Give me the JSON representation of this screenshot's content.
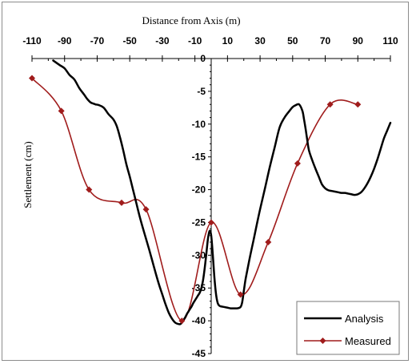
{
  "chart_data": {
    "type": "line",
    "title": "",
    "xlabel": "Distance from Axis (m)",
    "ylabel": "Settlement (cm)",
    "xlim": [
      -110,
      110
    ],
    "ylim": [
      -45,
      0
    ],
    "x_ticks": [
      -110,
      -90,
      -70,
      -50,
      -30,
      -10,
      10,
      30,
      50,
      70,
      90,
      110
    ],
    "x_tick_labels": [
      "-110",
      "-90",
      "-70",
      "-50",
      "-30",
      "-10",
      "10",
      "30",
      "50",
      "70",
      "90",
      "110"
    ],
    "y_ticks": [
      0,
      -5,
      -10,
      -15,
      -20,
      -25,
      -30,
      -35,
      -40,
      -45
    ],
    "y_tick_labels": [
      "0",
      "-5",
      "-10",
      "-15",
      "-20",
      "-25",
      "-30",
      "-35",
      "-40",
      "-45"
    ],
    "x_axis_position": "top",
    "grid": false,
    "legend_position": "bottom-right",
    "series": [
      {
        "name": "Analysis",
        "color": "#000000",
        "marker": "none",
        "x": [
          -97,
          -93,
          -90,
          -87,
          -84,
          -81,
          -78,
          -76,
          -74,
          -72,
          -71,
          -69,
          -66,
          -63,
          -60,
          -58,
          -56,
          -54,
          -52,
          -50,
          -48,
          -46,
          -44,
          -42,
          -40,
          -38,
          -36,
          -34,
          -32,
          -30,
          -28,
          -26,
          -24,
          -22,
          -20,
          -19,
          -18,
          -17,
          -16,
          -15,
          -14,
          -13,
          -12,
          -11,
          -10,
          -9,
          -8,
          -7,
          -6,
          -5,
          -4,
          -3,
          -2,
          -1,
          0,
          1,
          2,
          3,
          4,
          5,
          6,
          8,
          10,
          12,
          14,
          16,
          18,
          19,
          20,
          21,
          22,
          24,
          26,
          28,
          30,
          33,
          36,
          39,
          42,
          45,
          48,
          50,
          52,
          54,
          56,
          57,
          58,
          59,
          60,
          62,
          64,
          66,
          68,
          70,
          72,
          74,
          76,
          78,
          80,
          82,
          84,
          86,
          88,
          90,
          92,
          94,
          96,
          98,
          100,
          102,
          104,
          106,
          108,
          110
        ],
        "y": [
          -0.3,
          -1.0,
          -1.5,
          -2.5,
          -3.2,
          -4.5,
          -5.5,
          -6.2,
          -6.7,
          -6.9,
          -7.0,
          -7.1,
          -7.5,
          -8.5,
          -9.3,
          -10.3,
          -12.0,
          -14.0,
          -16.2,
          -18.0,
          -20.0,
          -22.0,
          -24.0,
          -25.8,
          -27.5,
          -29.2,
          -31.0,
          -32.8,
          -34.5,
          -36.0,
          -37.5,
          -38.8,
          -39.7,
          -40.3,
          -40.5,
          -40.5,
          -40.3,
          -39.9,
          -39.5,
          -39.0,
          -38.6,
          -38.2,
          -37.8,
          -37.3,
          -36.9,
          -36.5,
          -36.1,
          -35.7,
          -35.0,
          -33.8,
          -32.0,
          -29.8,
          -27.5,
          -26.3,
          -27.0,
          -30.0,
          -33.5,
          -36.0,
          -37.3,
          -37.7,
          -37.8,
          -37.9,
          -38.0,
          -38.1,
          -38.1,
          -38.1,
          -37.9,
          -37.2,
          -35.5,
          -33.8,
          -32.5,
          -30.0,
          -27.7,
          -25.3,
          -23.0,
          -19.8,
          -16.5,
          -13.5,
          -10.5,
          -9.0,
          -8.0,
          -7.4,
          -7.1,
          -7.0,
          -8.0,
          -9.3,
          -10.8,
          -12.5,
          -14.0,
          -15.5,
          -16.8,
          -18.0,
          -19.2,
          -19.8,
          -20.1,
          -20.2,
          -20.3,
          -20.4,
          -20.5,
          -20.5,
          -20.6,
          -20.7,
          -20.8,
          -20.7,
          -20.4,
          -19.8,
          -19.0,
          -18.0,
          -16.8,
          -15.4,
          -13.8,
          -12.2,
          -11.0,
          -9.8
        ]
      },
      {
        "name": "Measured",
        "color": "#a01c1c",
        "marker": "diamond",
        "x": [
          -110,
          -92,
          -75,
          -55,
          -40,
          -18,
          0,
          18,
          35,
          53,
          73,
          90
        ],
        "y": [
          -3,
          -8,
          -20,
          -22,
          -23,
          -40,
          -25,
          -36,
          -28,
          -16,
          -7,
          -7
        ]
      }
    ]
  }
}
